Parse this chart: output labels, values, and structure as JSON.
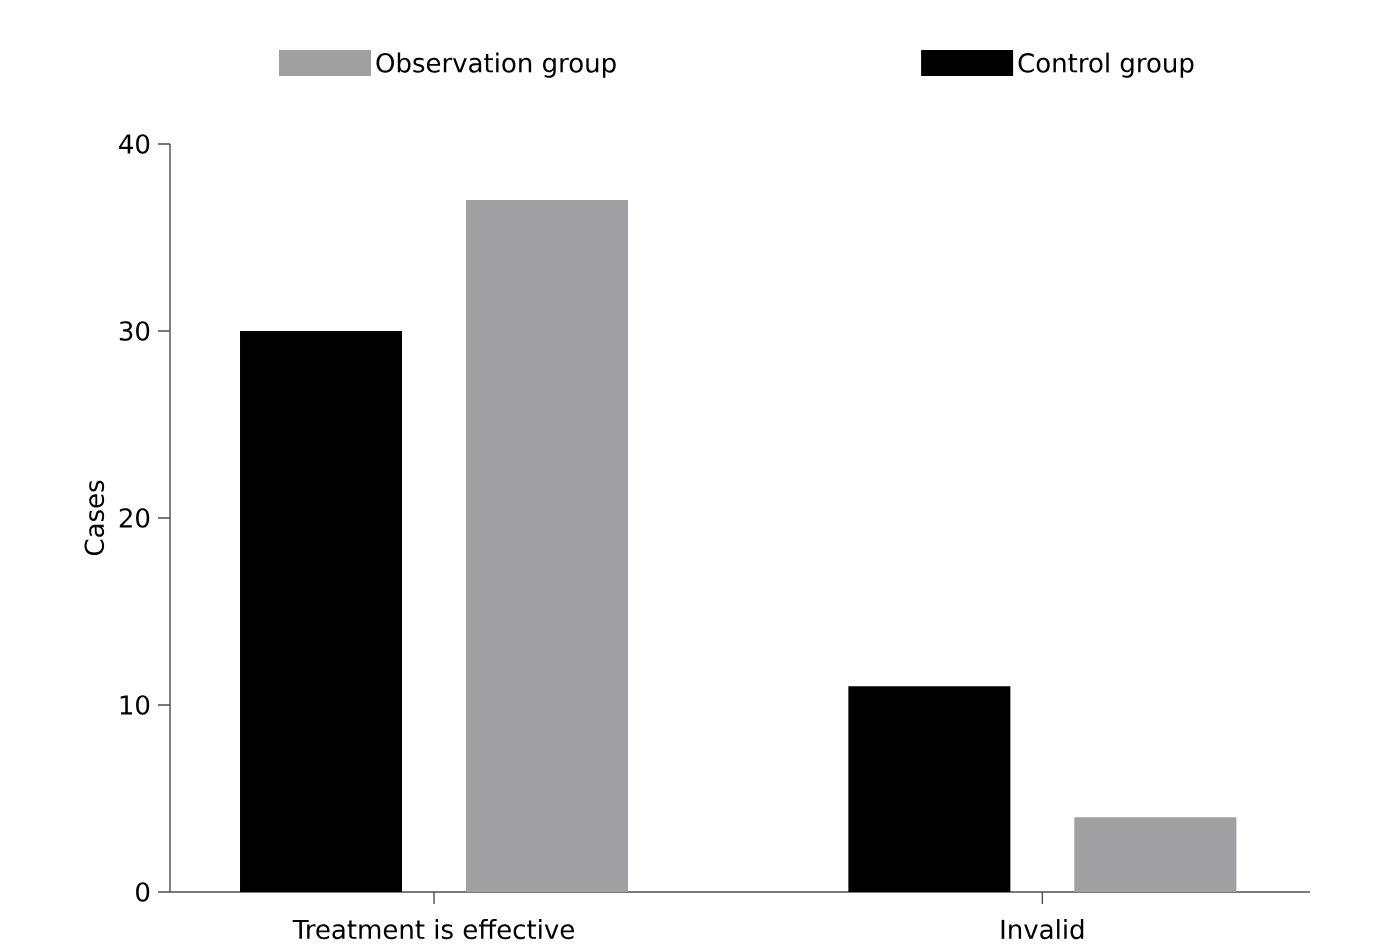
{
  "chart_data": {
    "type": "bar",
    "ylabel": "Cases",
    "categories": [
      "Treatment is effective",
      "Invalid"
    ],
    "series": [
      {
        "name": "Control group",
        "color": "#000000",
        "values": [
          30,
          11
        ]
      },
      {
        "name": "Observation group",
        "color": "#a0a0a2",
        "values": [
          37,
          4
        ]
      }
    ],
    "ylim": [
      0,
      40
    ],
    "yticks": [
      0,
      10,
      20,
      30,
      40
    ],
    "legend": "top",
    "grid": false
  }
}
